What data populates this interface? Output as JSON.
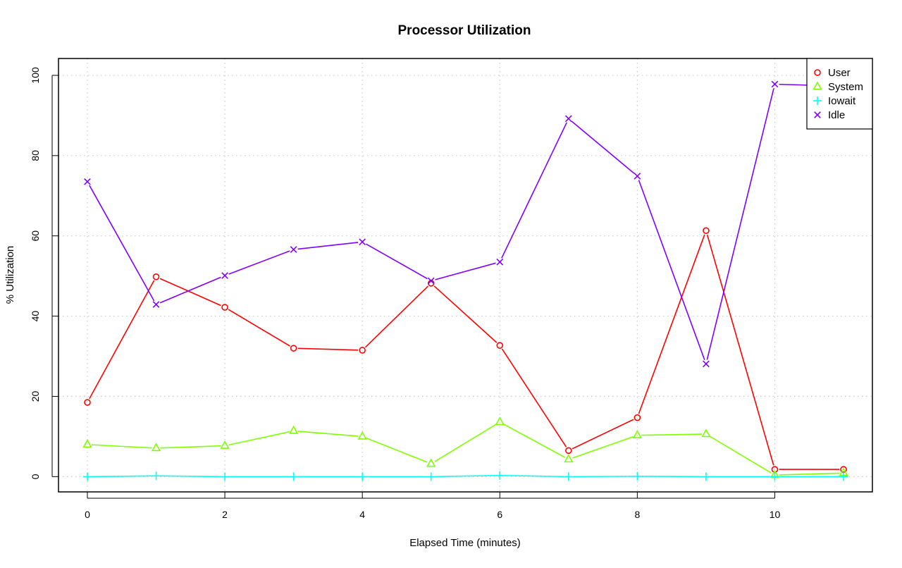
{
  "chart_data": {
    "type": "line",
    "title": "Processor Utilization",
    "xlabel": "Elapsed Time (minutes)",
    "ylabel": "% Utilization",
    "x": [
      0,
      1,
      2,
      3,
      4,
      5,
      6,
      7,
      8,
      9,
      10,
      11
    ],
    "xlim": [
      -0.42,
      11.42
    ],
    "ylim": [
      -3.8,
      104.2
    ],
    "x_ticks": [
      "0",
      "2",
      "4",
      "6",
      "8",
      "10"
    ],
    "y_ticks": [
      "0",
      "20",
      "40",
      "60",
      "80",
      "100"
    ],
    "grid": true,
    "legend_position": "top-right",
    "series": [
      {
        "name": "User",
        "color": "#ff0000",
        "marker": "circle",
        "values": [
          18.5,
          49.8,
          42.2,
          32.0,
          31.5,
          48.2,
          32.7,
          6.5,
          14.7,
          61.3,
          1.8,
          1.8
        ]
      },
      {
        "name": "System",
        "color": "#80ff00",
        "marker": "triangle",
        "values": [
          8.0,
          7.1,
          7.7,
          11.4,
          10.0,
          3.2,
          13.6,
          4.3,
          10.3,
          10.6,
          0.4,
          0.9
        ]
      },
      {
        "name": "Iowait",
        "color": "#00ffff",
        "marker": "plus",
        "values": [
          0.0,
          0.2,
          0.0,
          0.0,
          0.0,
          0.0,
          0.3,
          0.0,
          0.1,
          0.0,
          0.0,
          0.0
        ]
      },
      {
        "name": "Idle",
        "color": "#8000ff",
        "marker": "cross",
        "values": [
          73.5,
          42.9,
          50.1,
          56.6,
          58.5,
          48.8,
          53.5,
          89.2,
          74.9,
          28.1,
          97.8,
          97.3
        ]
      }
    ]
  }
}
